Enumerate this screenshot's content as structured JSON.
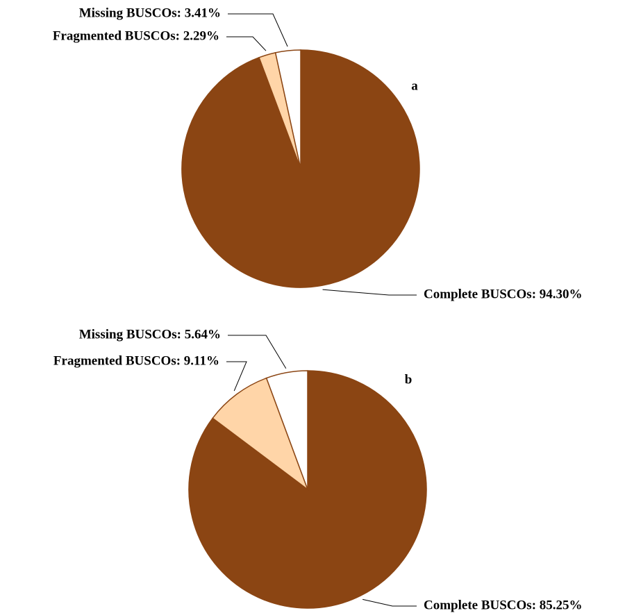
{
  "chart_data": [
    {
      "type": "pie",
      "panel_label": "a",
      "values": [
        94.3,
        2.29,
        3.41
      ],
      "value_labels": [
        "Complete BUSCOs: 94.30%",
        "Fragmented BUSCOs: 2.29%",
        "Missing BUSCOs: 3.41%"
      ],
      "colors": [
        "#8b4513",
        "#ffd5a8",
        "#ffffff"
      ],
      "edge_color": "#8b4513"
    },
    {
      "type": "pie",
      "panel_label": "b",
      "values": [
        85.25,
        9.11,
        5.64
      ],
      "value_labels": [
        "Complete BUSCOs: 85.25%",
        "Fragmented BUSCOs: 9.11%",
        "Missing BUSCOs: 5.64%"
      ],
      "colors": [
        "#8b4513",
        "#ffd5a8",
        "#ffffff"
      ],
      "edge_color": "#8b4513"
    }
  ]
}
